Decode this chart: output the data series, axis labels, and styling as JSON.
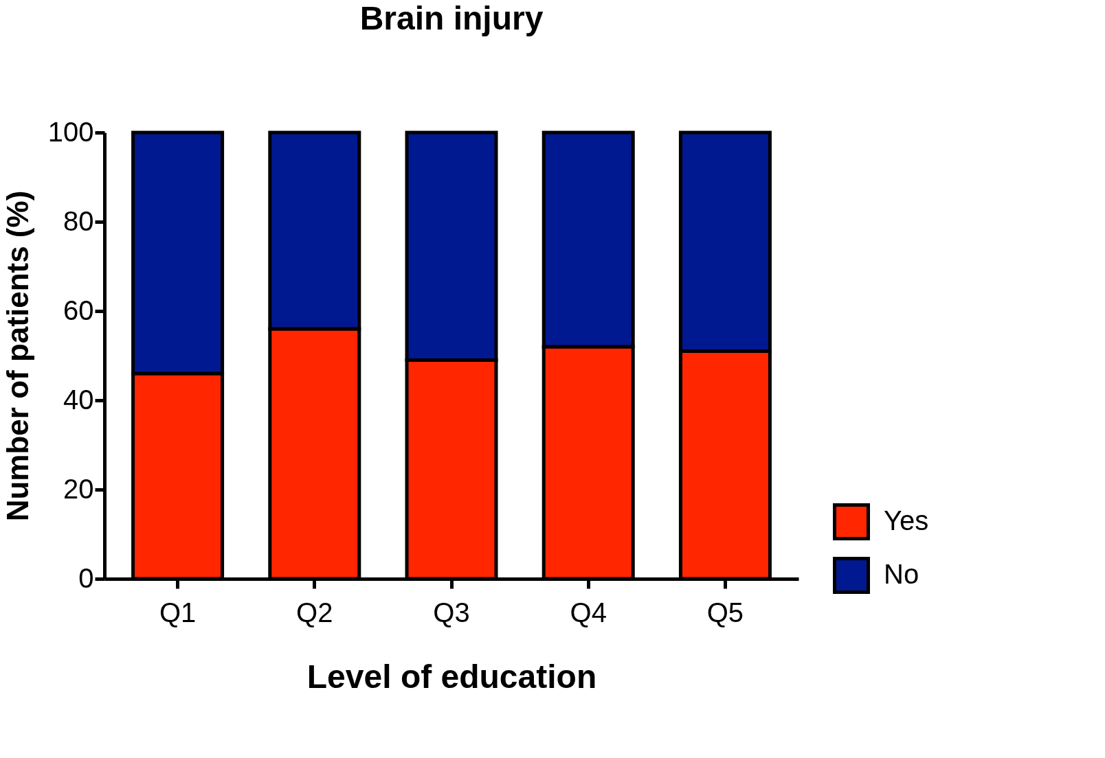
{
  "chart_data": {
    "type": "bar",
    "stacked": true,
    "title": "Brain injury",
    "xlabel": "Level of education",
    "ylabel": "Number of patients (%)",
    "categories": [
      "Q1",
      "Q2",
      "Q3",
      "Q4",
      "Q5"
    ],
    "series": [
      {
        "name": "Yes",
        "color": "#ff2600",
        "values": [
          46,
          56,
          49,
          52,
          51
        ]
      },
      {
        "name": "No",
        "color": "#001991",
        "values": [
          54,
          44,
          51,
          48,
          49
        ]
      }
    ],
    "ylim": [
      0,
      100
    ],
    "yticks": [
      0,
      20,
      40,
      60,
      80,
      100
    ],
    "grid": false,
    "legend": "bottom right"
  }
}
